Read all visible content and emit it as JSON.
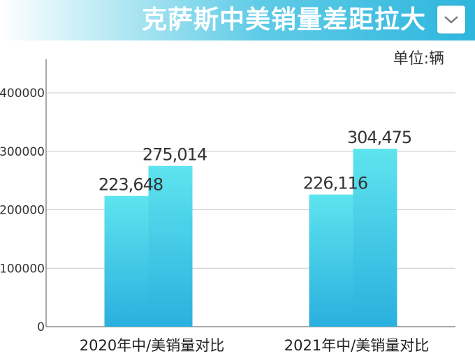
{
  "header": {
    "title": "克萨斯中美销量差距拉大"
  },
  "unit_label": "单位:辆",
  "chart_data": {
    "type": "bar",
    "categories": [
      "2020年中/美销量对比",
      "2021年中/美销量对比"
    ],
    "series": [
      {
        "values": [
          223648,
          226116
        ],
        "labels": [
          "223,648",
          "226,116"
        ]
      },
      {
        "values": [
          275014,
          304475
        ],
        "labels": [
          "275,014",
          "304,475"
        ]
      }
    ],
    "yticks": [
      0,
      100000,
      200000,
      300000,
      400000
    ],
    "ytick_labels": [
      "0",
      "100000",
      "200000",
      "300000",
      "400000"
    ],
    "ylim": [
      0,
      400000
    ],
    "grid": true,
    "colors": {
      "bar_top": "#5ee4ee",
      "bar_bottom": "#2ab0de",
      "grid": "#c8c8c8"
    }
  }
}
